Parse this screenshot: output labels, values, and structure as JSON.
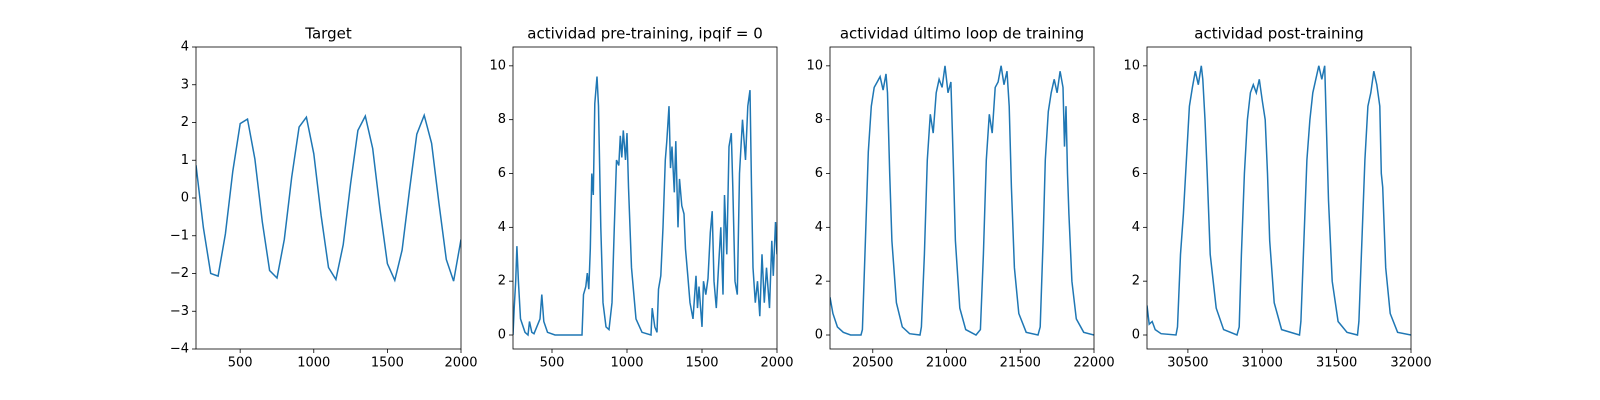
{
  "chart_data": [
    {
      "type": "line",
      "title": "Target",
      "color": "#1f77b4",
      "x": [
        200,
        250,
        300,
        350,
        400,
        450,
        500,
        550,
        600,
        650,
        700,
        750,
        800,
        850,
        900,
        950,
        1000,
        1050,
        1100,
        1150,
        1200,
        1250,
        1300,
        1350,
        1400,
        1450,
        1500,
        1550,
        1600,
        1650,
        1700,
        1750,
        1800,
        1850,
        1900,
        1950,
        2000
      ],
      "values": [
        0.87,
        -0.79,
        -2.0,
        -2.07,
        -0.95,
        0.71,
        1.97,
        2.09,
        1.03,
        -0.63,
        -1.92,
        -2.12,
        -1.1,
        0.55,
        1.88,
        2.14,
        1.17,
        -0.46,
        -1.84,
        -2.16,
        -1.24,
        0.38,
        1.79,
        2.17,
        1.31,
        -0.3,
        -1.74,
        -2.18,
        -1.38,
        0.21,
        1.69,
        2.19,
        1.45,
        -0.13,
        -1.63,
        -2.2,
        -1.1
      ],
      "xlim": [
        200,
        2000
      ],
      "ylim": [
        -4,
        4
      ],
      "xticks": [
        500,
        1000,
        1500,
        2000
      ],
      "yticks": [
        {
          "value": -4,
          "label": "−4"
        },
        {
          "value": -3,
          "label": "−3"
        },
        {
          "value": -2,
          "label": "−2"
        },
        {
          "value": -1,
          "label": "−1"
        },
        0,
        1,
        2,
        3,
        4
      ]
    },
    {
      "type": "line",
      "title": "actividad pre-training, ipqif = 0",
      "color": "#1f77b4",
      "x": [
        240,
        248,
        258,
        266,
        276,
        290,
        320,
        340,
        350,
        365,
        380,
        420,
        432,
        445,
        470,
        520,
        600,
        700,
        710,
        725,
        735,
        745,
        755,
        765,
        775,
        785,
        800,
        810,
        825,
        840,
        860,
        880,
        900,
        915,
        930,
        945,
        955,
        965,
        975,
        990,
        1000,
        1010,
        1030,
        1060,
        1100,
        1160,
        1168,
        1185,
        1200,
        1210,
        1225,
        1240,
        1255,
        1265,
        1280,
        1290,
        1300,
        1315,
        1325,
        1340,
        1350,
        1365,
        1380,
        1390,
        1405,
        1420,
        1440,
        1460,
        1470,
        1480,
        1500,
        1510,
        1525,
        1540,
        1555,
        1568,
        1580,
        1595,
        1610,
        1625,
        1640,
        1650,
        1665,
        1680,
        1695,
        1705,
        1720,
        1735,
        1750,
        1770,
        1790,
        1805,
        1820,
        1830,
        1840,
        1855,
        1870,
        1885,
        1900,
        1915,
        1930,
        1950,
        1965,
        1975,
        1990,
        2000
      ],
      "values": [
        0,
        1.0,
        2.0,
        3.3,
        2.0,
        0.6,
        0.1,
        0,
        0.5,
        0.1,
        0.05,
        0.6,
        1.5,
        0.5,
        0.1,
        0,
        0,
        0,
        1.5,
        1.8,
        2.3,
        1.7,
        3.2,
        6.0,
        5.2,
        8.6,
        9.6,
        8.5,
        4.0,
        1.2,
        0.3,
        0.2,
        1.2,
        4.0,
        6.5,
        6.3,
        7.4,
        6.6,
        7.6,
        6.5,
        7.5,
        5.5,
        2.5,
        0.6,
        0.1,
        0,
        1.0,
        0.3,
        0.1,
        1.7,
        2.2,
        4.0,
        6.5,
        7.2,
        8.5,
        6.2,
        7.0,
        5.3,
        7.2,
        4.0,
        5.8,
        4.8,
        4.5,
        3.2,
        2.2,
        1.2,
        0.6,
        2.2,
        1.0,
        1.8,
        0.3,
        2.0,
        1.5,
        2.1,
        3.8,
        4.6,
        2.0,
        1.0,
        2.5,
        4.0,
        1.5,
        5.2,
        3.0,
        7.0,
        7.5,
        5.5,
        2.0,
        1.5,
        6.0,
        8.0,
        6.5,
        8.5,
        9.1,
        5.5,
        2.5,
        1.2,
        2.0,
        0.7,
        3.0,
        1.2,
        2.5,
        1.0,
        3.5,
        2.2,
        4.2,
        3.0
      ],
      "xlim": [
        240,
        2000
      ],
      "ylim": [
        -0.52,
        10.7
      ],
      "xticks": [
        500,
        1000,
        1500,
        2000
      ],
      "yticks": [
        0,
        2,
        4,
        6,
        8,
        10
      ]
    },
    {
      "type": "line",
      "title": "actividad último loop de training",
      "color": "#1f77b4",
      "x": [
        20210,
        20230,
        20260,
        20300,
        20350,
        20420,
        20430,
        20450,
        20470,
        20490,
        20510,
        20530,
        20550,
        20570,
        20590,
        20600,
        20615,
        20630,
        20660,
        20700,
        20750,
        20820,
        20830,
        20850,
        20870,
        20890,
        20910,
        20930,
        20950,
        20970,
        20990,
        21010,
        21030,
        21045,
        21060,
        21090,
        21130,
        21200,
        21230,
        21250,
        21270,
        21290,
        21310,
        21330,
        21350,
        21370,
        21390,
        21410,
        21425,
        21440,
        21460,
        21490,
        21540,
        21620,
        21635,
        21655,
        21670,
        21690,
        21710,
        21730,
        21750,
        21770,
        21790,
        21800,
        21810,
        21820,
        21830,
        21850,
        21880,
        21930,
        22000
      ],
      "values": [
        1.4,
        0.8,
        0.3,
        0.1,
        0,
        0,
        0.2,
        3.5,
        6.8,
        8.5,
        9.2,
        9.4,
        9.6,
        9.1,
        9.7,
        9.0,
        6.0,
        3.5,
        1.2,
        0.3,
        0.05,
        0,
        0.3,
        3.0,
        6.5,
        8.2,
        7.5,
        9.0,
        9.5,
        9.2,
        10.0,
        9.0,
        9.4,
        6.5,
        3.5,
        1.0,
        0.2,
        0,
        0.2,
        3.0,
        6.5,
        8.2,
        7.5,
        9.2,
        9.4,
        10.0,
        9.3,
        9.8,
        8.5,
        5.5,
        2.5,
        0.8,
        0.1,
        0,
        0.3,
        3.5,
        6.5,
        8.3,
        9.0,
        9.5,
        9.0,
        9.8,
        9.2,
        7.0,
        8.5,
        6.0,
        4.5,
        2.0,
        0.6,
        0.1,
        0
      ],
      "xlim": [
        20210,
        22000
      ],
      "ylim": [
        -0.52,
        10.7
      ],
      "xticks": [
        20500,
        21000,
        21500,
        22000
      ],
      "yticks": [
        0,
        2,
        4,
        6,
        8,
        10
      ]
    },
    {
      "type": "line",
      "title": "actividad post-training",
      "color": "#1f77b4",
      "x": [
        30225,
        30240,
        30260,
        30280,
        30320,
        30420,
        30430,
        30450,
        30470,
        30490,
        30510,
        30530,
        30550,
        30570,
        30590,
        30600,
        30615,
        30630,
        30650,
        30690,
        30740,
        30830,
        30845,
        30860,
        30880,
        30900,
        30920,
        30940,
        30960,
        30980,
        31000,
        31020,
        31035,
        31050,
        31080,
        31130,
        31250,
        31260,
        31280,
        31300,
        31320,
        31340,
        31360,
        31380,
        31400,
        31420,
        31430,
        31445,
        31470,
        31510,
        31570,
        31640,
        31650,
        31670,
        31690,
        31710,
        31730,
        31750,
        31770,
        31790,
        31800,
        31810,
        31830,
        31860,
        31910,
        32000
      ],
      "values": [
        1.1,
        0.4,
        0.5,
        0.2,
        0.05,
        0,
        0.3,
        3.0,
        4.5,
        6.5,
        8.5,
        9.2,
        9.8,
        9.3,
        10.0,
        9.5,
        8.0,
        6.0,
        3.0,
        1.0,
        0.2,
        0,
        0.3,
        3.0,
        6.0,
        8.0,
        9.0,
        9.3,
        9.0,
        9.5,
        8.7,
        8.0,
        6.0,
        3.5,
        1.2,
        0.2,
        0,
        0.5,
        3.5,
        6.5,
        8.0,
        9.0,
        9.5,
        10.0,
        9.5,
        10.0,
        8.0,
        5.0,
        2.0,
        0.5,
        0.1,
        0,
        0.5,
        3.5,
        6.5,
        8.5,
        9.0,
        9.8,
        9.3,
        8.5,
        6.0,
        5.5,
        2.5,
        0.8,
        0.1,
        0
      ],
      "xlim": [
        30225,
        32000
      ],
      "ylim": [
        -0.52,
        10.7
      ],
      "xticks": [
        30500,
        31000,
        31500,
        32000
      ],
      "yticks": [
        0,
        2,
        4,
        6,
        8,
        10
      ]
    }
  ]
}
